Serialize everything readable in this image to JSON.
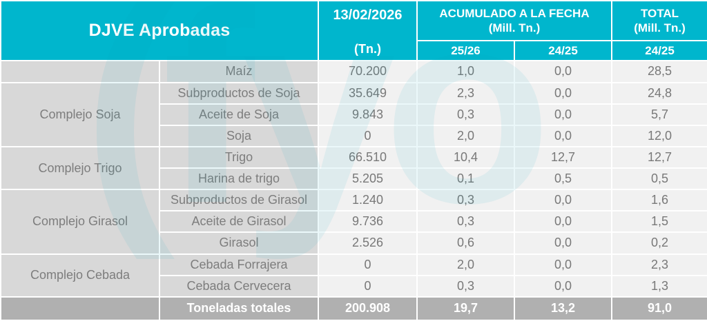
{
  "title": "DJVE Aprobadas",
  "header": {
    "date": "13/02/2026",
    "date_unit": "(Tn.)",
    "acumulado_label": "ACUMULADO A LA FECHA",
    "acumulado_unit": "(Mill. Tn.)",
    "acumulado_col_2526": "25/26",
    "acumulado_col_2425": "24/25",
    "total_label": "TOTAL",
    "total_unit": "(Mill. Tn.)",
    "total_col_2425": "24/25"
  },
  "chart_data": {
    "type": "table",
    "title": "DJVE Aprobadas",
    "columns": [
      "Complejo",
      "Producto",
      "13/02/2026 (Tn.)",
      "ACUMULADO A LA FECHA (Mill. Tn.) 25/26",
      "ACUMULADO A LA FECHA (Mill. Tn.) 24/25",
      "TOTAL (Mill. Tn.) 24/25"
    ],
    "rows": [
      {
        "group": "",
        "product": "Maíz",
        "tn": "70.200",
        "acum_2526": "1,0",
        "acum_2425": "0,0",
        "total_2425": "28,5"
      },
      {
        "group": "Complejo Soja",
        "product": "Subproductos de Soja",
        "tn": "35.649",
        "acum_2526": "2,3",
        "acum_2425": "0,0",
        "total_2425": "24,8"
      },
      {
        "product": "Aceite de Soja",
        "tn": "9.843",
        "acum_2526": "0,3",
        "acum_2425": "0,0",
        "total_2425": "5,7"
      },
      {
        "product": "Soja",
        "tn": "0",
        "acum_2526": "2,0",
        "acum_2425": "0,0",
        "total_2425": "12,0"
      },
      {
        "group": "Complejo Trigo",
        "product": "Trigo",
        "tn": "66.510",
        "acum_2526": "10,4",
        "acum_2425": "12,7",
        "total_2425": "12,7"
      },
      {
        "product": "Harina de trigo",
        "tn": "5.205",
        "acum_2526": "0,1",
        "acum_2425": "0,5",
        "total_2425": "0,5"
      },
      {
        "group": "Complejo Girasol",
        "product": "Subproductos de Girasol",
        "tn": "1.240",
        "acum_2526": "0,3",
        "acum_2425": "0,0",
        "total_2425": "1,6"
      },
      {
        "product": "Aceite de Girasol",
        "tn": "9.736",
        "acum_2526": "0,3",
        "acum_2425": "0,0",
        "total_2425": "1,5"
      },
      {
        "product": "Girasol",
        "tn": "2.526",
        "acum_2526": "0,6",
        "acum_2425": "0,0",
        "total_2425": "0,2"
      },
      {
        "group": "Complejo Cebada",
        "product": "Cebada Forrajera",
        "tn": "0",
        "acum_2526": "2,0",
        "acum_2425": "0,0",
        "total_2425": "2,3"
      },
      {
        "product": "Cebada Cervecera",
        "tn": "0",
        "acum_2526": "0,3",
        "acum_2425": "0,0",
        "total_2425": "1,3"
      }
    ],
    "footer": {
      "label": "Toneladas totales",
      "tn": "200.908",
      "acum_2526": "19,7",
      "acum_2425": "13,2",
      "total_2425": "91,0"
    }
  },
  "watermark": {
    "text": "(fyo"
  },
  "colors": {
    "teal": "#00b6cd",
    "label_cell_bg": "#d8d8d8",
    "value_cell_bg": "#f1f1f1",
    "footer_bg": "#b0b0b0",
    "data_text": "#7d7d7d",
    "header_text": "#ffffff"
  }
}
